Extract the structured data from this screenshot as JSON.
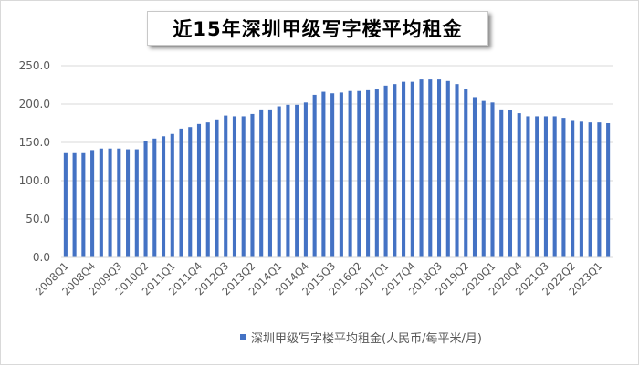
{
  "chart_data": {
    "type": "bar",
    "title": "近15年深圳甲级写字楼平均租金",
    "ylim": [
      0,
      250
    ],
    "yticks": [
      "0.0",
      "50.0",
      "100.0",
      "150.0",
      "200.0",
      "250.0"
    ],
    "grid": true,
    "legend_position": "bottom",
    "color": "#4472c4",
    "categories": [
      "2008Q1",
      "2008Q2",
      "2008Q3",
      "2008Q4",
      "2009Q1",
      "2009Q2",
      "2009Q3",
      "2009Q4",
      "2010Q1",
      "2010Q2",
      "2010Q3",
      "2010Q4",
      "2011Q1",
      "2011Q2",
      "2011Q3",
      "2011Q4",
      "2012Q1",
      "2012Q2",
      "2012Q3",
      "2012Q4",
      "2013Q1",
      "2013Q2",
      "2013Q3",
      "2013Q4",
      "2014Q1",
      "2014Q2",
      "2014Q3",
      "2014Q4",
      "2015Q1",
      "2015Q2",
      "2015Q3",
      "2015Q4",
      "2016Q1",
      "2016Q2",
      "2016Q3",
      "2016Q4",
      "2017Q1",
      "2017Q2",
      "2017Q3",
      "2017Q4",
      "2018Q1",
      "2018Q2",
      "2018Q3",
      "2018Q4",
      "2019Q1",
      "2019Q2",
      "2019Q3",
      "2019Q4",
      "2020Q1",
      "2020Q2",
      "2020Q3",
      "2020Q4",
      "2021Q1",
      "2021Q2",
      "2021Q3",
      "2021Q4",
      "2022Q1",
      "2022Q2",
      "2022Q3",
      "2022Q4",
      "2023Q1",
      "2023Q2"
    ],
    "shown_tick_labels": [
      "2008Q1",
      "2008Q4",
      "2009Q3",
      "2010Q2",
      "2011Q1",
      "2011Q4",
      "2012Q3",
      "2013Q2",
      "2014Q1",
      "2014Q4",
      "2015Q3",
      "2016Q2",
      "2017Q1",
      "2017Q4",
      "2018Q3",
      "2019Q2",
      "2020Q1",
      "2020Q4",
      "2021Q3",
      "2022Q2",
      "2023Q1"
    ],
    "series": [
      {
        "name": "深圳甲级写字楼平均租金(人民币/每平米/月)",
        "values": [
          136,
          136,
          136,
          140,
          142,
          142,
          142,
          141,
          141,
          152,
          155,
          158,
          161,
          168,
          170,
          174,
          176,
          180,
          185,
          184,
          184,
          187,
          193,
          193,
          197,
          199,
          199,
          202,
          212,
          216,
          214,
          215,
          217,
          217,
          218,
          219,
          224,
          226,
          229,
          229,
          232,
          232,
          232,
          230,
          226,
          220,
          209,
          204,
          202,
          193,
          192,
          188,
          184,
          184,
          184,
          184,
          182,
          178,
          177,
          176,
          176,
          175
        ]
      }
    ]
  }
}
